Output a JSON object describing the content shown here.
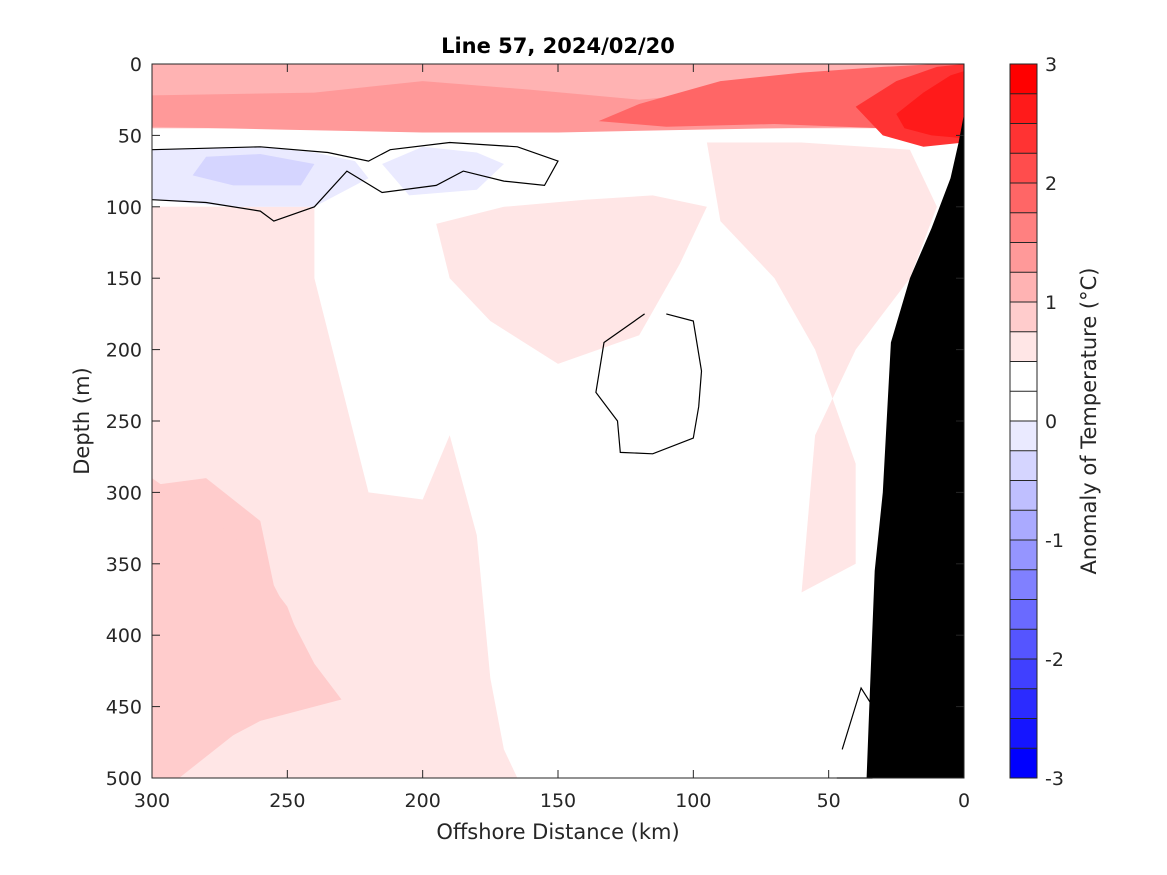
{
  "chart_data": {
    "type": "contour",
    "title": "Line 57, 2024/02/20",
    "xlabel": "Offshore Distance (km)",
    "ylabel": "Depth (m)",
    "colorbar_label": "Anomaly of Temperature (°C)",
    "xlim": [
      300,
      0
    ],
    "ylim": [
      500,
      0
    ],
    "x_ticks": [
      300,
      250,
      200,
      150,
      100,
      50,
      0
    ],
    "y_ticks": [
      0,
      50,
      100,
      150,
      200,
      250,
      300,
      350,
      400,
      450,
      500
    ],
    "colorbar": {
      "range": [
        -3,
        3
      ],
      "ticks": [
        3,
        2,
        1,
        0,
        -1,
        -2,
        -3
      ],
      "step": 0.25,
      "colors": [
        "#0000ff",
        "#1515ff",
        "#2b2bff",
        "#4040ff",
        "#5555ff",
        "#6a6aff",
        "#8080ff",
        "#9595ff",
        "#aaaaff",
        "#bfbfff",
        "#d5d5ff",
        "#eaeaff",
        "#ffffff",
        "#ffffff",
        "#ffe6e6",
        "#ffcccc",
        "#ffb3b3",
        "#ff9999",
        "#ff8080",
        "#ff6666",
        "#ff4d4d",
        "#ff3333",
        "#ff1a1a",
        "#ff0000"
      ]
    },
    "regions": [
      {
        "level": 0.75,
        "color": "#ffb3b3",
        "points": [
          [
            300,
            0
          ],
          [
            0,
            0
          ],
          [
            0,
            45
          ],
          [
            300,
            45
          ]
        ]
      },
      {
        "level": 1.25,
        "color": "#ff9999",
        "points": [
          [
            300,
            22
          ],
          [
            240,
            20
          ],
          [
            200,
            12
          ],
          [
            160,
            18
          ],
          [
            120,
            25
          ],
          [
            80,
            18
          ],
          [
            40,
            12
          ],
          [
            20,
            5
          ],
          [
            0,
            5
          ],
          [
            0,
            48
          ],
          [
            40,
            44
          ],
          [
            100,
            46
          ],
          [
            150,
            48
          ],
          [
            200,
            48
          ],
          [
            250,
            46
          ],
          [
            300,
            44
          ]
        ]
      },
      {
        "level": 1.75,
        "color": "#ff6666",
        "points": [
          [
            120,
            28
          ],
          [
            90,
            12
          ],
          [
            60,
            6
          ],
          [
            30,
            2
          ],
          [
            10,
            0
          ],
          [
            0,
            0
          ],
          [
            0,
            45
          ],
          [
            30,
            45
          ],
          [
            70,
            42
          ],
          [
            110,
            44
          ],
          [
            135,
            40
          ]
        ]
      },
      {
        "level": 2.25,
        "color": "#ff3333",
        "points": [
          [
            40,
            30
          ],
          [
            25,
            12
          ],
          [
            10,
            2
          ],
          [
            0,
            0
          ],
          [
            0,
            55
          ],
          [
            15,
            58
          ],
          [
            30,
            50
          ]
        ]
      },
      {
        "level": 2.75,
        "color": "#ff1a1a",
        "points": [
          [
            25,
            35
          ],
          [
            15,
            20
          ],
          [
            5,
            8
          ],
          [
            0,
            5
          ],
          [
            0,
            52
          ],
          [
            12,
            50
          ],
          [
            22,
            45
          ]
        ]
      },
      {
        "level": 0.25,
        "color": "#ffe6e6",
        "points": [
          [
            300,
            100
          ],
          [
            240,
            100
          ],
          [
            240,
            150
          ],
          [
            220,
            300
          ],
          [
            200,
            305
          ],
          [
            190,
            260
          ],
          [
            180,
            330
          ],
          [
            175,
            430
          ],
          [
            170,
            480
          ],
          [
            165,
            500
          ],
          [
            300,
            500
          ]
        ]
      },
      {
        "level": 0.75,
        "color": "#ffcccc",
        "points": [
          [
            300,
            295
          ],
          [
            280,
            290
          ],
          [
            260,
            320
          ],
          [
            255,
            365
          ],
          [
            240,
            420
          ],
          [
            230,
            445
          ],
          [
            260,
            460
          ],
          [
            300,
            500
          ],
          [
            300,
            500
          ],
          [
            300,
            295
          ]
        ]
      },
      {
        "level": 0.75,
        "color": "#ffcccc",
        "points": [
          [
            300,
            500
          ],
          [
            290,
            500
          ],
          [
            270,
            470
          ],
          [
            255,
            450
          ],
          [
            240,
            430
          ],
          [
            250,
            380
          ],
          [
            270,
            330
          ],
          [
            300,
            290
          ]
        ]
      },
      {
        "level": 0.25,
        "color": "#ffe6e6",
        "points": [
          [
            195,
            112
          ],
          [
            170,
            100
          ],
          [
            140,
            95
          ],
          [
            115,
            92
          ],
          [
            95,
            100
          ],
          [
            105,
            140
          ],
          [
            120,
            190
          ],
          [
            150,
            210
          ],
          [
            175,
            180
          ],
          [
            190,
            150
          ]
        ]
      },
      {
        "level": 0.25,
        "color": "#ffe6e6",
        "points": [
          [
            95,
            55
          ],
          [
            60,
            55
          ],
          [
            20,
            60
          ],
          [
            10,
            100
          ],
          [
            20,
            150
          ],
          [
            40,
            200
          ],
          [
            55,
            260
          ],
          [
            60,
            370
          ],
          [
            40,
            350
          ],
          [
            40,
            280
          ],
          [
            55,
            200
          ],
          [
            70,
            150
          ],
          [
            90,
            110
          ]
        ]
      },
      {
        "level": -0.25,
        "color": "#eaeaff",
        "points": [
          [
            300,
            60
          ],
          [
            260,
            58
          ],
          [
            240,
            62
          ],
          [
            225,
            68
          ],
          [
            220,
            80
          ],
          [
            240,
            100
          ],
          [
            270,
            100
          ],
          [
            300,
            95
          ]
        ]
      },
      {
        "level": -0.25,
        "color": "#eaeaff",
        "points": [
          [
            215,
            70
          ],
          [
            200,
            58
          ],
          [
            180,
            62
          ],
          [
            170,
            70
          ],
          [
            180,
            88
          ],
          [
            205,
            92
          ]
        ]
      },
      {
        "level": -0.5,
        "color": "#d5d5ff",
        "points": [
          [
            280,
            65
          ],
          [
            260,
            63
          ],
          [
            240,
            70
          ],
          [
            245,
            85
          ],
          [
            270,
            85
          ],
          [
            285,
            78
          ]
        ]
      }
    ],
    "zero_contours": [
      {
        "points": [
          [
            300,
            60
          ],
          [
            260,
            58
          ],
          [
            235,
            62
          ],
          [
            220,
            68
          ],
          [
            212,
            60
          ],
          [
            190,
            55
          ],
          [
            165,
            58
          ],
          [
            150,
            68
          ],
          [
            155,
            85
          ],
          [
            170,
            82
          ],
          [
            185,
            75
          ],
          [
            195,
            85
          ],
          [
            215,
            90
          ],
          [
            228,
            75
          ],
          [
            240,
            100
          ],
          [
            255,
            110
          ],
          [
            260,
            103
          ],
          [
            280,
            97
          ],
          [
            300,
            95
          ]
        ]
      },
      {
        "points": [
          [
            118,
            175
          ],
          [
            133,
            195
          ],
          [
            136,
            230
          ],
          [
            128,
            250
          ],
          [
            127,
            272
          ],
          [
            115,
            273
          ],
          [
            100,
            262
          ],
          [
            98,
            240
          ],
          [
            97,
            215
          ],
          [
            100,
            180
          ],
          [
            110,
            175
          ]
        ]
      },
      {
        "points": [
          [
            45,
            480
          ],
          [
            38,
            437
          ],
          [
            32,
            455
          ],
          [
            34,
            500
          ],
          [
            47,
            500
          ]
        ]
      }
    ],
    "bathymetry": {
      "color": "#000000",
      "points": [
        [
          0,
          35
        ],
        [
          2,
          55
        ],
        [
          5,
          80
        ],
        [
          12,
          115
        ],
        [
          20,
          150
        ],
        [
          27,
          195
        ],
        [
          30,
          300
        ],
        [
          33,
          355
        ],
        [
          35,
          450
        ],
        [
          36,
          500
        ],
        [
          0,
          500
        ]
      ]
    }
  }
}
